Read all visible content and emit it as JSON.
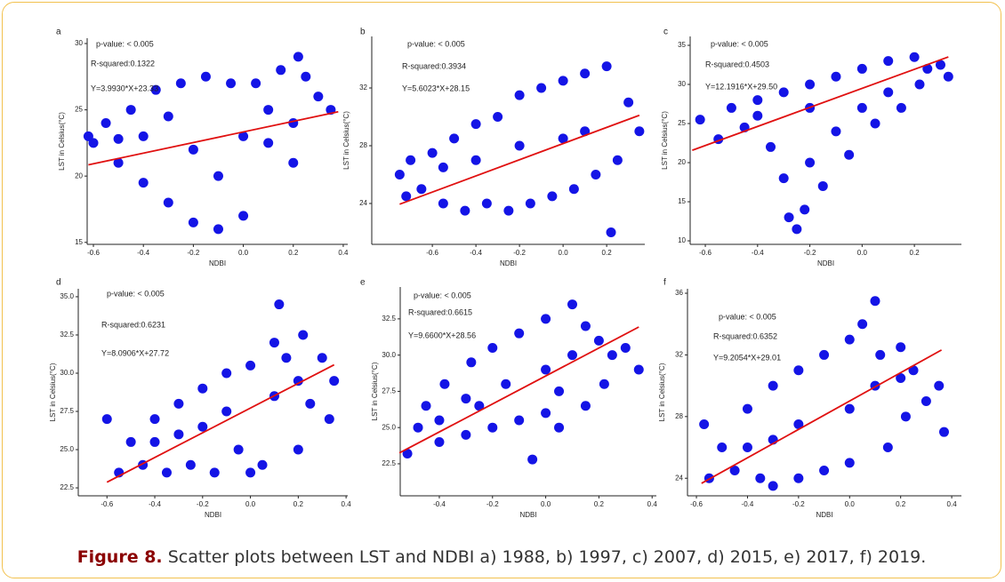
{
  "chart_data": [
    {
      "type": "scatter",
      "label": "a",
      "xlabel": "NDBI",
      "ylabel": "LST in Celsius(°C)",
      "annotations": [
        "p-value: < 0.005",
        "R-squared:0.1322",
        "Y=3.9930*X+23.33"
      ],
      "xlim": [
        -0.625,
        0.418
      ],
      "ylim": [
        14.85,
        30.4
      ],
      "xticks": [
        -0.6,
        -0.4,
        -0.2,
        {
          "value": 0,
          "label": "0.0"
        },
        0.2,
        0.4
      ],
      "yticks": [
        15,
        20,
        25,
        30
      ],
      "color": "#1414e6",
      "line_color": "#e01010",
      "x": [
        -0.62,
        -0.6,
        -0.55,
        -0.5,
        -0.45,
        -0.4,
        -0.35,
        -0.3,
        -0.25,
        -0.2,
        -0.15,
        -0.1,
        -0.05,
        0,
        0.05,
        0.1,
        0.15,
        0.2,
        0.22,
        0.3,
        0.35,
        -0.4,
        -0.2,
        0,
        0.2,
        -0.3,
        -0.1,
        0.1,
        -0.5,
        0.25
      ],
      "y": [
        23,
        22.5,
        24,
        21,
        25,
        19.5,
        26.5,
        18,
        27,
        16.5,
        27.5,
        16,
        27,
        17,
        27,
        25,
        28,
        21,
        29,
        26,
        25,
        23,
        22,
        23,
        24,
        24.5,
        20,
        22.5,
        22.8,
        27.5
      ],
      "fit": {
        "x": [
          -0.62,
          0.38
        ],
        "y": [
          20.85,
          24.85
        ]
      }
    },
    {
      "type": "scatter",
      "label": "b",
      "xlabel": "NDBI",
      "ylabel": "LST in Celsius(°C)",
      "annotations": [
        "p-value: < 0.005",
        "R-squared:0.3934",
        "Y=5.6023*X+28.15"
      ],
      "xlim": [
        -0.878,
        0.375
      ],
      "ylim": [
        21.17,
        35.57
      ],
      "xticks": [
        -0.6,
        -0.4,
        -0.2,
        {
          "value": 0,
          "label": "0.0"
        },
        0.2
      ],
      "yticks": [
        24,
        28,
        32
      ],
      "color": "#1414e6",
      "line_color": "#e01010",
      "x": [
        -0.75,
        -0.72,
        -0.7,
        -0.65,
        -0.6,
        -0.55,
        -0.5,
        -0.45,
        -0.4,
        -0.35,
        -0.3,
        -0.25,
        -0.2,
        -0.15,
        -0.1,
        -0.05,
        0,
        0.05,
        0.1,
        0.15,
        0.2,
        0.22,
        0.25,
        0.3,
        0.35,
        -0.4,
        -0.2,
        0,
        0.1,
        -0.55
      ],
      "y": [
        26,
        24.5,
        27,
        25,
        27.5,
        24,
        28.5,
        23.5,
        29.5,
        24,
        30,
        23.5,
        31.5,
        24,
        32,
        24.5,
        32.5,
        25,
        33,
        26,
        33.5,
        22,
        27,
        31,
        29,
        27,
        28,
        28.5,
        29,
        26.5
      ],
      "fit": {
        "x": [
          -0.75,
          0.35
        ],
        "y": [
          23.95,
          30.11
        ]
      }
    },
    {
      "type": "scatter",
      "label": "c",
      "xlabel": "NDBI",
      "ylabel": "LST in Celsius(°C)",
      "annotations": [
        "p-value: < 0.005",
        "R-squared:0.4503",
        "Y=12.1916*X+29.50"
      ],
      "xlim": [
        -0.658,
        0.38
      ],
      "ylim": [
        9.55,
        36.14
      ],
      "xticks": [
        -0.6,
        -0.4,
        -0.2,
        {
          "value": 0,
          "label": "0.0"
        },
        0.2
      ],
      "yticks": [
        10,
        15,
        20,
        25,
        30,
        35
      ],
      "color": "#1414e6",
      "line_color": "#e01010",
      "x": [
        -0.62,
        -0.55,
        -0.5,
        -0.45,
        -0.4,
        -0.35,
        -0.3,
        -0.3,
        -0.28,
        -0.25,
        -0.22,
        -0.2,
        -0.2,
        -0.15,
        -0.1,
        -0.1,
        -0.05,
        0,
        0,
        0.05,
        0.1,
        0.1,
        0.15,
        0.2,
        0.22,
        0.25,
        0.3,
        0.33,
        -0.4,
        -0.2
      ],
      "y": [
        25.5,
        23,
        27,
        24.5,
        28,
        22,
        29,
        18,
        13,
        11.5,
        14,
        30,
        20,
        17,
        31,
        24,
        21,
        32,
        27,
        25,
        33,
        29,
        27,
        33.5,
        30,
        32,
        32.5,
        31,
        26,
        27
      ],
      "fit": {
        "x": [
          -0.65,
          0.33
        ],
        "y": [
          21.58,
          33.52
        ]
      }
    },
    {
      "type": "scatter",
      "label": "d",
      "xlabel": "NDBI",
      "ylabel": "LST in Celsius(°C)",
      "annotations": [
        "p-value: < 0.005",
        "R-squared:0.6231",
        "Y=8.0906*X+27.72"
      ],
      "xlim": [
        -0.72,
        0.407
      ],
      "ylim": [
        21.98,
        35.52
      ],
      "xticks": [
        -0.6,
        -0.4,
        -0.2,
        {
          "value": 0,
          "label": "0.0"
        },
        0.2,
        0.4
      ],
      "yticks": [
        22.5,
        {
          "value": 25,
          "label": "25.0"
        },
        27.5,
        {
          "value": 30,
          "label": "30.0"
        },
        32.5,
        {
          "value": 35,
          "label": "35.0"
        }
      ],
      "color": "#1414e6",
      "line_color": "#e01010",
      "x": [
        -0.6,
        -0.55,
        -0.5,
        -0.45,
        -0.4,
        -0.35,
        -0.3,
        -0.25,
        -0.2,
        -0.15,
        -0.1,
        -0.05,
        0,
        0.05,
        0.1,
        0.12,
        0.15,
        0.2,
        0.22,
        0.25,
        0.3,
        0.33,
        0.35,
        -0.3,
        -0.1,
        0.1,
        0,
        -0.2,
        0.2,
        -0.4
      ],
      "y": [
        27,
        23.5,
        25.5,
        24,
        27,
        23.5,
        28,
        24,
        29,
        23.5,
        30,
        25,
        30.5,
        24,
        32,
        34.5,
        31,
        25,
        32.5,
        28,
        31,
        27,
        29.5,
        26,
        27.5,
        28.5,
        23.5,
        26.5,
        29.5,
        25.5
      ],
      "fit": {
        "x": [
          -0.6,
          0.35
        ],
        "y": [
          22.87,
          30.55
        ]
      }
    },
    {
      "type": "scatter",
      "label": "e",
      "xlabel": "NDBI",
      "ylabel": "LST in Celsius(°C)",
      "annotations": [
        "p-value: < 0.005",
        "R-squared:0.6615",
        "Y=9.6600*X+28.56"
      ],
      "xlim": [
        -0.547,
        0.416
      ],
      "ylim": [
        20.29,
        34.7
      ],
      "xticks": [
        -0.4,
        -0.2,
        {
          "value": 0,
          "label": "0.0"
        },
        0.2,
        0.4
      ],
      "yticks": [
        22.5,
        {
          "value": 25,
          "label": "25.0"
        },
        27.5,
        {
          "value": 30,
          "label": "30.0"
        },
        32.5
      ],
      "color": "#1414e6",
      "line_color": "#e01010",
      "x": [
        -0.52,
        -0.48,
        -0.45,
        -0.4,
        -0.38,
        -0.3,
        -0.28,
        -0.2,
        -0.2,
        -0.1,
        -0.1,
        0,
        0,
        0.05,
        0.1,
        0.15,
        0.15,
        0.2,
        0.22,
        0.25,
        -0.3,
        -0.15,
        0,
        0.1,
        -0.4,
        -0.05,
        0.3,
        0.35,
        -0.25,
        0.05
      ],
      "y": [
        23.2,
        25,
        26.5,
        24,
        28,
        24.5,
        29.5,
        25,
        30.5,
        25.5,
        31.5,
        26,
        32.5,
        25,
        33.5,
        32,
        26.5,
        31,
        28,
        30,
        27,
        28,
        29,
        30,
        25.5,
        22.8,
        30.5,
        29,
        26.5,
        27.5
      ],
      "fit": {
        "x": [
          -0.55,
          0.35
        ],
        "y": [
          23.25,
          31.94
        ]
      }
    },
    {
      "type": "scatter",
      "label": "f",
      "xlabel": "NDBI",
      "ylabel": "LST in Celsius(°C)",
      "annotations": [
        "p-value: < 0.005",
        "R-squared:0.6352",
        "Y=9.2054*X+29.01"
      ],
      "xlim": [
        -0.635,
        0.438
      ],
      "ylim": [
        22.86,
        36.29
      ],
      "xticks": [
        -0.6,
        -0.4,
        -0.2,
        {
          "value": 0,
          "label": "0.0"
        },
        0.2,
        0.4
      ],
      "yticks": [
        24,
        28,
        32,
        36
      ],
      "color": "#1414e6",
      "line_color": "#e01010",
      "x": [
        -0.57,
        -0.55,
        -0.5,
        -0.45,
        -0.4,
        -0.35,
        -0.3,
        -0.3,
        -0.2,
        -0.2,
        -0.1,
        -0.1,
        0,
        0,
        0.05,
        0.1,
        0.12,
        0.15,
        0.2,
        0.22,
        0.25,
        0.3,
        0.35,
        0.37,
        -0.4,
        -0.2,
        0,
        0.1,
        -0.3,
        0.2
      ],
      "y": [
        27.5,
        24,
        26,
        24.5,
        28.5,
        24,
        30,
        23.5,
        31,
        24,
        32,
        24.5,
        33,
        25,
        34,
        35.5,
        32,
        26,
        32.5,
        28,
        31,
        29,
        30,
        27,
        26,
        27.5,
        28.5,
        30,
        26.5,
        30.5
      ],
      "fit": {
        "x": [
          -0.58,
          0.36
        ],
        "y": [
          23.67,
          32.32
        ]
      }
    }
  ],
  "caption": {
    "label": "Figure 8.",
    "text": "Scatter plots between LST and NDBI a) 1988, b) 1997, c) 2007, d) 2015, e) 2017, f) 2019."
  }
}
